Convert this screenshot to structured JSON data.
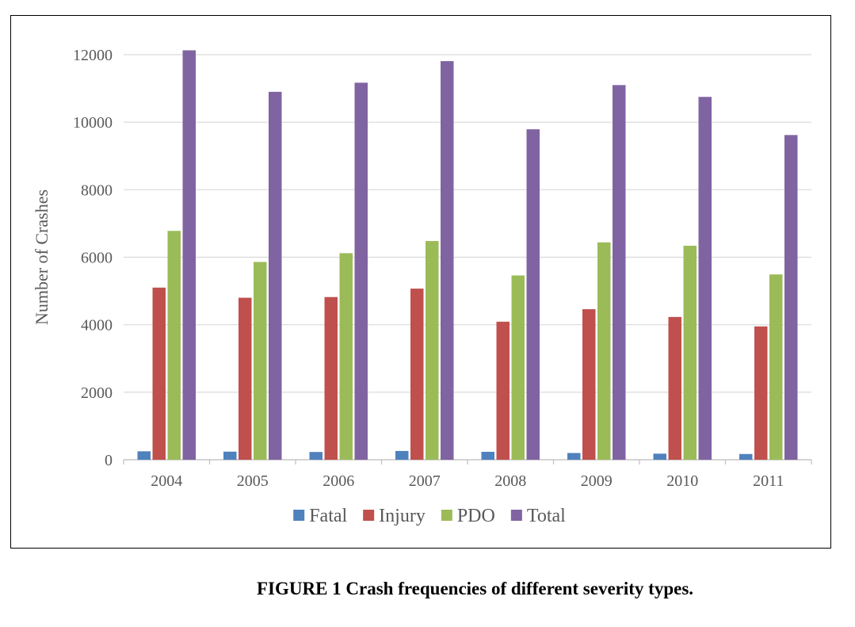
{
  "chart_data": {
    "type": "bar",
    "categories": [
      "2004",
      "2005",
      "2006",
      "2007",
      "2008",
      "2009",
      "2010",
      "2011"
    ],
    "series": [
      {
        "name": "Fatal",
        "color": "#4F81BD",
        "values": [
          250,
          240,
          230,
          260,
          235,
          200,
          180,
          170
        ]
      },
      {
        "name": "Injury",
        "color": "#C0504D",
        "values": [
          5100,
          4800,
          4820,
          5070,
          4090,
          4460,
          4230,
          3950
        ]
      },
      {
        "name": "PDO",
        "color": "#9BBB59",
        "values": [
          6780,
          5860,
          6120,
          6480,
          5460,
          6440,
          6340,
          5490
        ]
      },
      {
        "name": "Total",
        "color": "#8064A2",
        "values": [
          12130,
          10900,
          11170,
          11810,
          9790,
          11100,
          10750,
          9620
        ]
      }
    ],
    "ylabel": "Number of Crashes",
    "xlabel": "",
    "ylim": [
      0,
      12000
    ],
    "yticks": [
      0,
      2000,
      4000,
      6000,
      8000,
      10000,
      12000
    ],
    "grid": true,
    "legend_position": "bottom"
  },
  "caption": "FIGURE 1 Crash frequencies of different severity types."
}
